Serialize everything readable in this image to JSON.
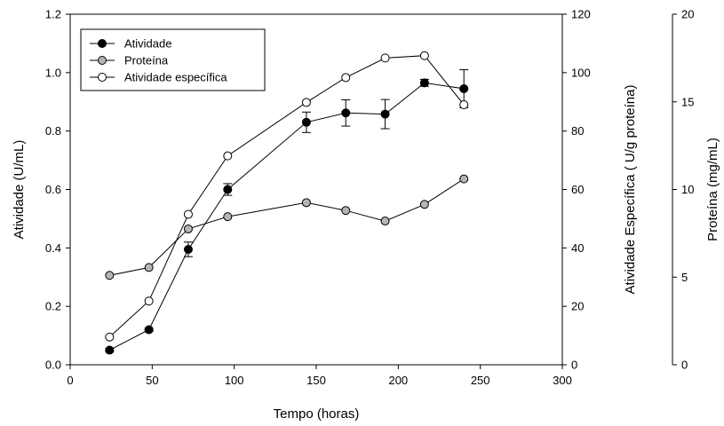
{
  "chart_data": {
    "type": "line",
    "xlabel": "Tempo (horas)",
    "x_ticks": [
      "0",
      "50",
      "100",
      "150",
      "200",
      "250",
      "300"
    ],
    "xlim": [
      0,
      300
    ],
    "axes": {
      "left": {
        "label": "Atividade (U/mL)",
        "lim": [
          0,
          1.2
        ],
        "ticks": [
          "0.0",
          "0.2",
          "0.4",
          "0.6",
          "0.8",
          "1.0",
          "1.2"
        ]
      },
      "right1": {
        "label": "Atividade Específica ( U/g proteína)",
        "lim": [
          0,
          120
        ],
        "ticks": [
          "0",
          "20",
          "40",
          "60",
          "80",
          "100",
          "120"
        ]
      },
      "right2": {
        "label": "Proteína (mg/mL)",
        "lim": [
          0,
          20
        ],
        "ticks": [
          "0",
          "5",
          "10",
          "15",
          "20"
        ]
      }
    },
    "legend_position": "top-left",
    "grid": false,
    "series": [
      {
        "name": "Atividade",
        "axis": "left",
        "marker_fill": "#000000",
        "x": [
          24,
          48,
          72,
          96,
          144,
          168,
          192,
          216,
          240
        ],
        "y": [
          0.05,
          0.12,
          0.395,
          0.6,
          0.83,
          0.862,
          0.858,
          0.965,
          0.945
        ],
        "err": [
          0.005,
          0.005,
          0.025,
          0.02,
          0.035,
          0.045,
          0.05,
          0.012,
          0.065
        ]
      },
      {
        "name": "Proteína",
        "axis": "right2",
        "marker_fill": "#b4b4b4",
        "x": [
          24,
          48,
          72,
          96,
          144,
          168,
          192,
          216,
          240
        ],
        "y": [
          5.1,
          5.55,
          7.75,
          8.45,
          9.25,
          8.8,
          8.2,
          9.15,
          10.6
        ]
      },
      {
        "name": "Atividade específica",
        "axis": "right1",
        "marker_fill": "#ffffff",
        "x": [
          24,
          48,
          72,
          96,
          144,
          168,
          192,
          216,
          240
        ],
        "y": [
          9.5,
          21.8,
          51.5,
          71.5,
          89.8,
          98.3,
          105,
          105.8,
          89
        ]
      }
    ]
  }
}
